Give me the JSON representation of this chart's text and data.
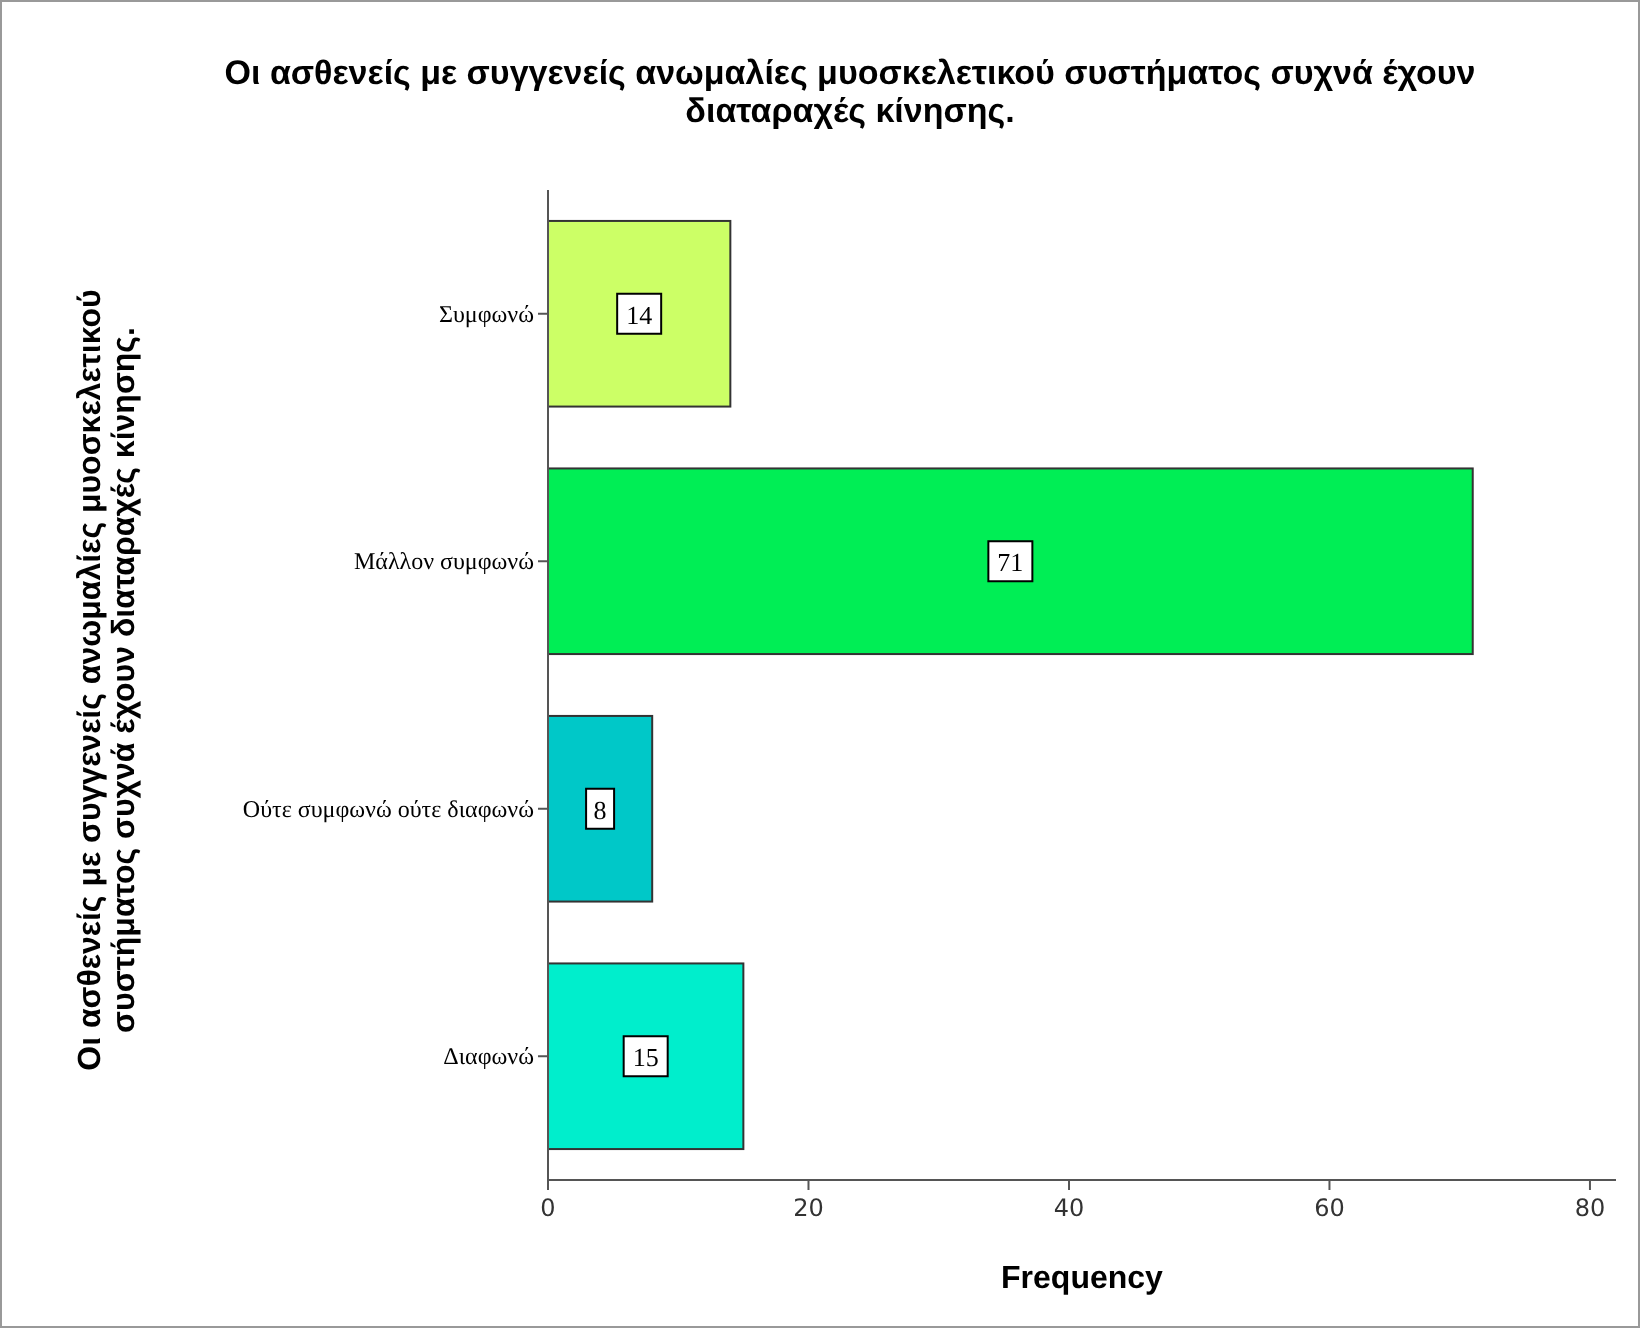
{
  "chart_data": {
    "type": "bar",
    "orientation": "horizontal",
    "title": "Οι ασθενείς με συγγενείς ανωμαλίες μυοσκελετικού συστήματος συχνά έχουν διαταραχές κίνησης.",
    "xlabel": "Frequency",
    "ylabel": "Οι ασθενείς με συγγενείς ανωμαλίες μυοσκελετικού συστήματος συχνά έχουν διαταραχές κίνησης.",
    "categories": [
      "Συμφωνώ",
      "Μάλλον συμφωνώ",
      "Ούτε συμφωνώ ούτε διαφωνώ",
      "Διαφωνώ"
    ],
    "values": [
      14,
      71,
      8,
      15
    ],
    "colors": [
      "#ccff66",
      "#00ee55",
      "#00c8c8",
      "#00eecc"
    ],
    "xlim": [
      0,
      82
    ],
    "xticks": [
      0,
      20,
      40,
      60,
      80
    ],
    "data_labels": true
  }
}
